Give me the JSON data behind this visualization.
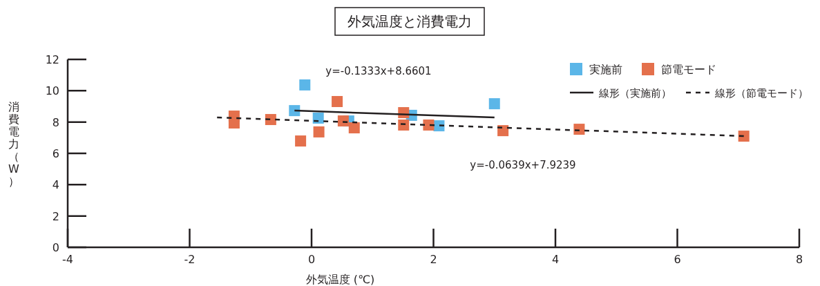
{
  "chart_data": {
    "type": "scatter",
    "title": "外気温度と消費電力",
    "xlabel": "外気温度 (℃)",
    "ylabel": "消費電力（W）",
    "xlim": [
      -4,
      8
    ],
    "ylim": [
      0,
      12
    ],
    "xticks": [
      -4,
      -2,
      0,
      2,
      4,
      6,
      8
    ],
    "yticks": [
      0,
      2,
      4,
      6,
      8,
      10,
      12
    ],
    "marker": "square",
    "legend": "top right",
    "annotations": [
      "y=-0.1333x+8.6601",
      "y=-0.0639x+7.9239"
    ],
    "series": [
      {
        "name": "実施前",
        "color": "#5bb6e8",
        "x": [
          -0.11,
          -0.28,
          0.11,
          0.61,
          1.64,
          2.09,
          3.0
        ],
        "values": [
          10.37,
          8.73,
          8.25,
          8.07,
          8.43,
          7.76,
          9.17
        ]
      },
      {
        "name": "節電モード",
        "color": "#e4704c",
        "x": [
          -1.27,
          -1.27,
          -0.67,
          -0.18,
          0.12,
          0.42,
          0.52,
          0.7,
          1.51,
          1.51,
          1.92,
          3.14,
          4.39,
          7.09
        ],
        "values": [
          8.38,
          7.94,
          8.16,
          6.79,
          7.37,
          9.31,
          8.07,
          7.63,
          8.6,
          7.81,
          7.81,
          7.45,
          7.54,
          7.1
        ]
      },
      {
        "name": "線形（実施前）",
        "type": "line",
        "marker": "none",
        "line_style": "solid",
        "color": "#231f20",
        "x": [
          -0.28,
          3.0
        ],
        "values": [
          8.73,
          8.29
        ]
      },
      {
        "name": "線形（節電モード）",
        "type": "line",
        "marker": "none",
        "line_style": "dashed",
        "color": "#231f20",
        "x": [
          -1.55,
          7.1
        ],
        "values": [
          8.29,
          7.1
        ]
      }
    ]
  }
}
